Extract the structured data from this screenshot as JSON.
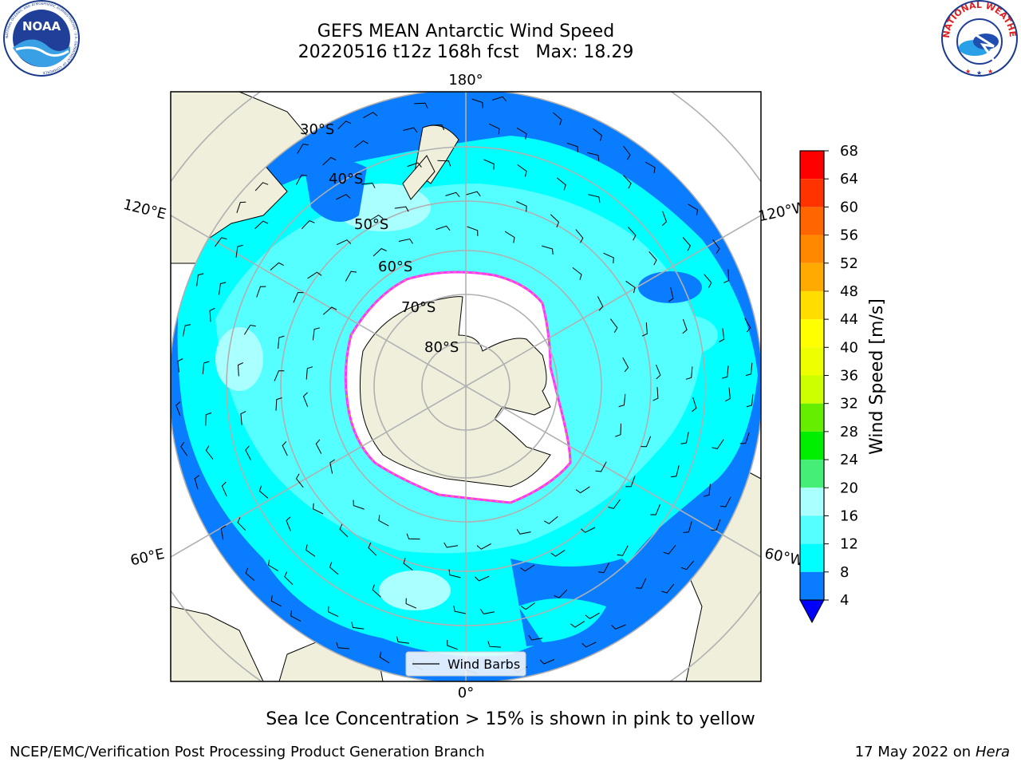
{
  "header": {
    "title_line1": "GEFS MEAN Antarctic Wind Speed",
    "title_line2": "20220516 t12z 168h fcst   Max: 18.29"
  },
  "logos": {
    "left": "noaa-logo",
    "left_text": "NOAA",
    "left_ring_text": "NATIONAL OCEANIC AND ATMOSPHERIC ADMINISTRATION · U.S. DEPARTMENT OF COMMERCE",
    "right": "national-weather-service-logo",
    "right_ring_text": "NATIONAL WEATHER SERVICE"
  },
  "map": {
    "projection": "south-polar-stereographic",
    "lon_labels": {
      "top": "180°",
      "bottom": "0°",
      "upper_left": "120°E",
      "upper_right": "120°W",
      "lower_left": "60°E",
      "lower_right": "60°W"
    },
    "lat_labels": [
      "30°S",
      "40°S",
      "50°S",
      "60°S",
      "70°S",
      "80°S"
    ],
    "legend_label": "Wind Barbs",
    "colors": {
      "ocean_deep": "#0a7cff",
      "ocean_mid": "#00ffff",
      "ocean_light": "#55ffff",
      "ocean_lighter": "#aaffff",
      "land": "#efefdc",
      "ice": "#ffffff",
      "ice_edge": "#ff33ff",
      "ice_edge_inner": "#ffaa33",
      "grid": "#b0b0b0"
    }
  },
  "colorbar": {
    "label": "Wind Speed [m/s]",
    "ticks": [
      "68",
      "64",
      "60",
      "56",
      "52",
      "48",
      "44",
      "40",
      "36",
      "32",
      "28",
      "24",
      "20",
      "16",
      "12",
      "8",
      "4"
    ],
    "bins": [
      {
        "from": 64,
        "to": 68,
        "color": "#ff0000"
      },
      {
        "from": 60,
        "to": 64,
        "color": "#ff3300"
      },
      {
        "from": 56,
        "to": 60,
        "color": "#ff6600"
      },
      {
        "from": 52,
        "to": 56,
        "color": "#ff8800"
      },
      {
        "from": 48,
        "to": 52,
        "color": "#ffaa00"
      },
      {
        "from": 44,
        "to": 48,
        "color": "#ffdd00"
      },
      {
        "from": 40,
        "to": 44,
        "color": "#ffff00"
      },
      {
        "from": 36,
        "to": 40,
        "color": "#eeff00"
      },
      {
        "from": 32,
        "to": 36,
        "color": "#ccff00"
      },
      {
        "from": 28,
        "to": 32,
        "color": "#66ee00"
      },
      {
        "from": 24,
        "to": 28,
        "color": "#00ee00"
      },
      {
        "from": 20,
        "to": 24,
        "color": "#44ee77"
      },
      {
        "from": 16,
        "to": 20,
        "color": "#aaffff"
      },
      {
        "from": 12,
        "to": 16,
        "color": "#55ffff"
      },
      {
        "from": 8,
        "to": 12,
        "color": "#00ffff"
      },
      {
        "from": 4,
        "to": 8,
        "color": "#0a7cff"
      }
    ],
    "under_color": "#0000ff"
  },
  "caption": "Sea Ice Concentration > 15% is shown in pink to yellow",
  "footer": {
    "left": "NCEP/EMC/Verification Post Processing Product Generation Branch",
    "right_date": "17 May 2022 on",
    "right_host": "Hera"
  }
}
